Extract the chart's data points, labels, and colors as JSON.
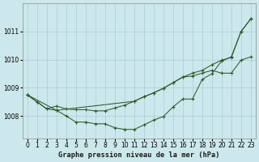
{
  "background_color": "#cce8ec",
  "grid_color": "#aaccd4",
  "line_color": "#2d5a2d",
  "title": "Graphe pression niveau de la mer (hPa)",
  "xlim": [
    -0.5,
    23.5
  ],
  "ylim": [
    1007.2,
    1012.0
  ],
  "yticks": [
    1008,
    1009,
    1010,
    1011
  ],
  "xticks": [
    0,
    1,
    2,
    3,
    4,
    5,
    6,
    7,
    8,
    9,
    10,
    11,
    12,
    13,
    14,
    15,
    16,
    17,
    18,
    19,
    20,
    21,
    22,
    23
  ],
  "series": [
    {
      "x": [
        0,
        1,
        2,
        3,
        4,
        5,
        6,
        7,
        8,
        9,
        10,
        11,
        12,
        13,
        14,
        15,
        16,
        17,
        18,
        19,
        20,
        21,
        22,
        23
      ],
      "y": [
        1008.75,
        1008.5,
        1008.25,
        1008.2,
        1008.0,
        1007.78,
        1007.78,
        1007.72,
        1007.72,
        1007.58,
        1007.52,
        1007.52,
        1007.68,
        1007.85,
        1007.98,
        1008.32,
        1008.6,
        1008.6,
        1009.3,
        1009.5,
        1009.95,
        1010.1,
        1011.0,
        1011.45
      ]
    },
    {
      "x": [
        0,
        1,
        2,
        3,
        4,
        5,
        6,
        7,
        8,
        9,
        10,
        11,
        12,
        13,
        14,
        15,
        16,
        17,
        18,
        19,
        20,
        21,
        22,
        23
      ],
      "y": [
        1008.75,
        1008.5,
        1008.25,
        1008.35,
        1008.25,
        1008.22,
        1008.22,
        1008.18,
        1008.18,
        1008.28,
        1008.38,
        1008.52,
        1008.68,
        1008.82,
        1008.98,
        1009.18,
        1009.38,
        1009.42,
        1009.52,
        1009.62,
        1009.52,
        1009.52,
        1009.98,
        1010.1
      ]
    },
    {
      "x": [
        0,
        3,
        11,
        12,
        13,
        14,
        15,
        16,
        17,
        18,
        19,
        20,
        21,
        22,
        23
      ],
      "y": [
        1008.75,
        1008.2,
        1008.52,
        1008.68,
        1008.82,
        1008.98,
        1009.18,
        1009.38,
        1009.52,
        1009.62,
        1009.82,
        1009.98,
        1010.08,
        1011.0,
        1011.45
      ]
    }
  ],
  "tick_fontsize": 5.5,
  "title_fontsize": 6.2,
  "linewidth": 0.75,
  "markersize": 3.5,
  "markeredgewidth": 0.8
}
